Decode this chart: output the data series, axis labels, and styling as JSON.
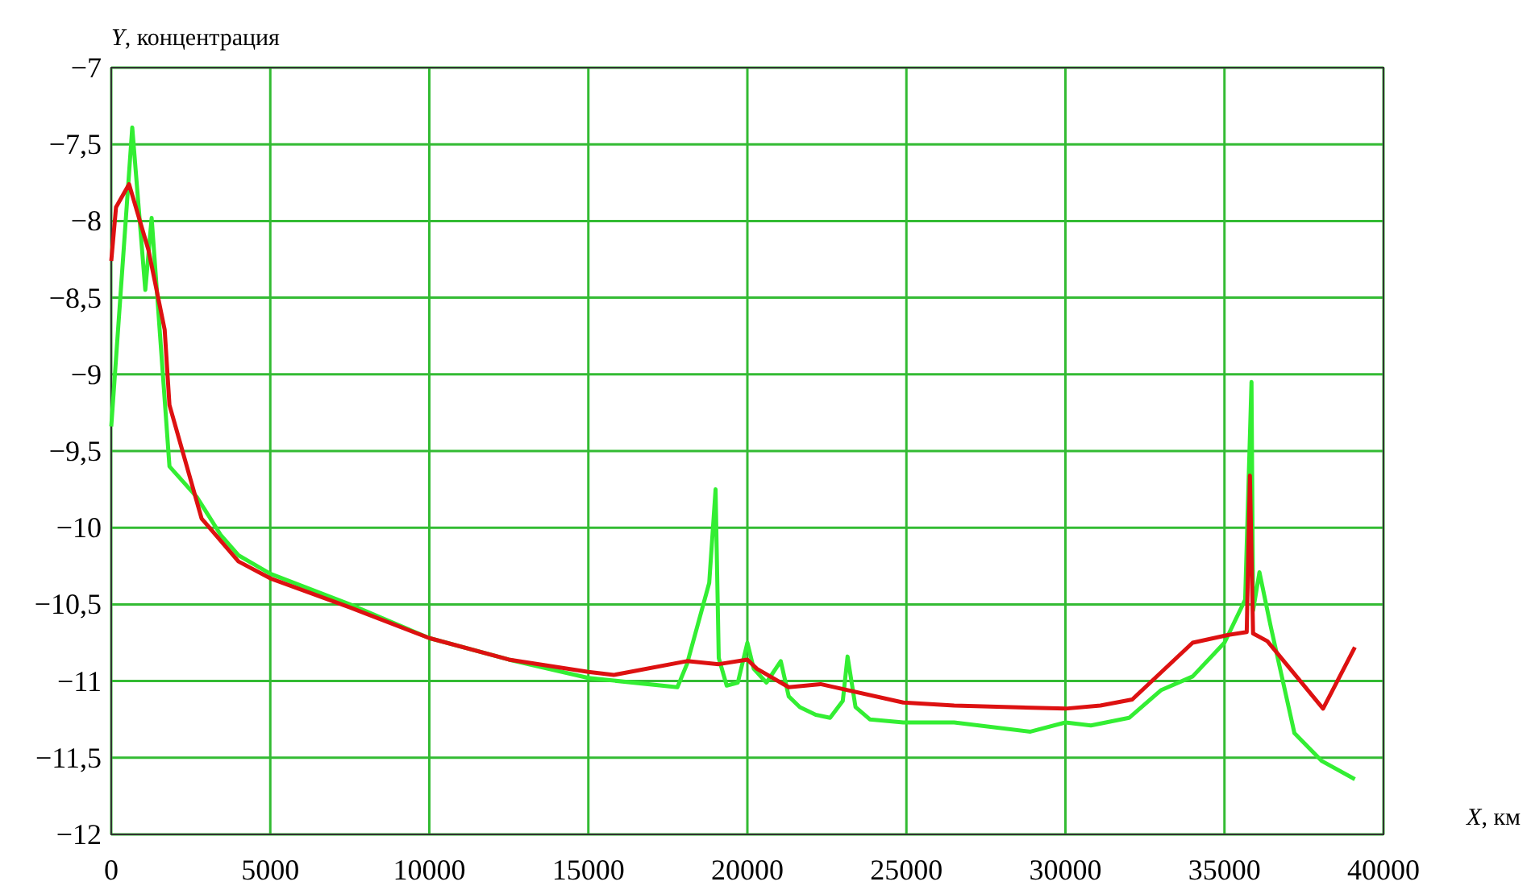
{
  "chart_data": {
    "type": "line",
    "xlabel": "X, км",
    "ylabel": "Y, концентрация",
    "grid": true,
    "xlim": [
      0,
      40000
    ],
    "xticks": [
      0,
      5000,
      10000,
      15000,
      20000,
      25000,
      30000,
      35000,
      40000
    ],
    "ylim": [
      -12,
      -7
    ],
    "yticks": [
      {
        "value": -12,
        "label": "−12"
      },
      {
        "value": -11.5,
        "label": "−11,5"
      },
      {
        "value": -11,
        "label": "−11"
      },
      {
        "value": -10.5,
        "label": "−10,5"
      },
      {
        "value": -10,
        "label": "−10"
      },
      {
        "value": -9.5,
        "label": "−9,5"
      },
      {
        "value": -9,
        "label": "−9"
      },
      {
        "value": -8.5,
        "label": "−8,5"
      },
      {
        "value": -8,
        "label": "−8"
      },
      {
        "value": -7.5,
        "label": "−7,5"
      },
      {
        "value": -7,
        "label": "−7"
      }
    ],
    "series": [
      {
        "color": "#33ee33",
        "x": [
          0,
          660,
          1070,
          1270,
          1830,
          2690,
          3450,
          4000,
          5000,
          7500,
          10000,
          12500,
          15000,
          17800,
          18100,
          18800,
          19000,
          19100,
          19350,
          19700,
          20000,
          20200,
          20600,
          21050,
          21300,
          21650,
          22150,
          22600,
          23000,
          23150,
          23400,
          23850,
          24900,
          26500,
          28900,
          30000,
          30800,
          32000,
          33000,
          34000,
          35000,
          35650,
          35850,
          35900,
          36100,
          36450,
          37200,
          38050,
          39100
        ],
        "values": [
          -9.34,
          -7.39,
          -8.45,
          -7.98,
          -9.6,
          -9.8,
          -10.05,
          -10.18,
          -10.3,
          -10.5,
          -10.72,
          -10.86,
          -10.98,
          -11.04,
          -10.89,
          -10.36,
          -9.75,
          -10.85,
          -11.03,
          -11.01,
          -10.75,
          -10.92,
          -11.01,
          -10.87,
          -11.1,
          -11.17,
          -11.22,
          -11.24,
          -11.13,
          -10.84,
          -11.17,
          -11.25,
          -11.27,
          -11.27,
          -11.33,
          -11.27,
          -11.29,
          -11.24,
          -11.06,
          -10.97,
          -10.75,
          -10.47,
          -9.05,
          -10.54,
          -10.29,
          -10.64,
          -11.34,
          -11.52,
          -11.64
        ]
      },
      {
        "color": "#dd1111",
        "x": [
          0,
          150,
          560,
          1170,
          1680,
          1830,
          2840,
          4000,
          5000,
          7500,
          10000,
          12500,
          15000,
          15800,
          18100,
          19100,
          20000,
          20300,
          21300,
          22300,
          24900,
          26500,
          30000,
          31100,
          32100,
          34000,
          35100,
          35700,
          35800,
          35900,
          36350,
          38100,
          39100
        ],
        "values": [
          -8.26,
          -7.91,
          -7.76,
          -8.19,
          -8.71,
          -9.2,
          -9.94,
          -10.22,
          -10.33,
          -10.52,
          -10.72,
          -10.86,
          -10.94,
          -10.96,
          -10.87,
          -10.89,
          -10.86,
          -10.92,
          -11.04,
          -11.02,
          -11.14,
          -11.16,
          -11.18,
          -11.16,
          -11.12,
          -10.75,
          -10.7,
          -10.68,
          -9.66,
          -10.69,
          -10.74,
          -11.18,
          -10.78
        ]
      }
    ]
  }
}
